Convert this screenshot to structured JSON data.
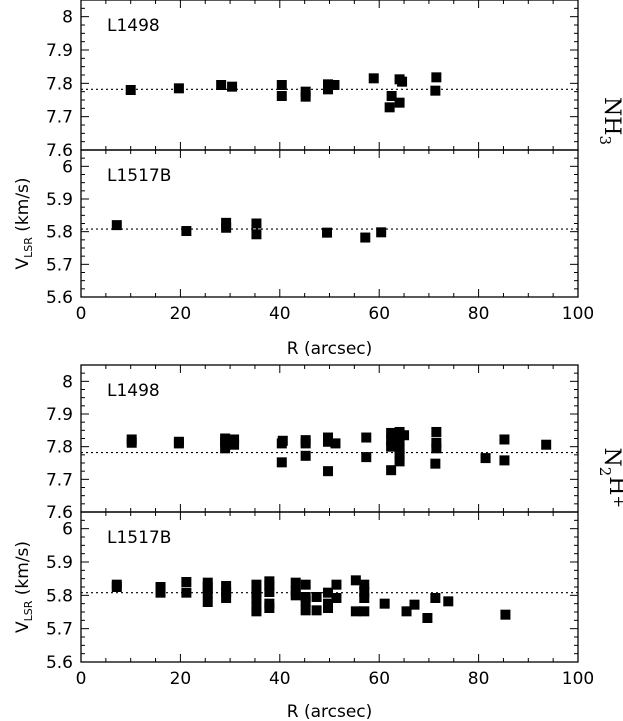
{
  "chart_data": [
    {
      "type": "scatter",
      "molecule": "NH3",
      "xlabel": "R (arcsec)",
      "xlim": [
        0,
        100
      ],
      "xticks": [
        0,
        20,
        40,
        60,
        80,
        100
      ],
      "panels": [
        {
          "label": "L1498",
          "ylim": [
            7.6,
            8.05
          ],
          "yticks": [
            7.6,
            7.7,
            7.8,
            7.9,
            8
          ],
          "ylabel": "",
          "reference": 7.782,
          "points": [
            [
              10,
              7.78
            ],
            [
              19.7,
              7.785
            ],
            [
              28.2,
              7.795
            ],
            [
              30.4,
              7.79
            ],
            [
              40.4,
              7.795
            ],
            [
              40.4,
              7.762
            ],
            [
              45.2,
              7.775
            ],
            [
              45.2,
              7.76
            ],
            [
              49.7,
              7.797
            ],
            [
              49.7,
              7.782
            ],
            [
              51,
              7.795
            ],
            [
              58.9,
              7.815
            ],
            [
              62.1,
              7.728
            ],
            [
              62.5,
              7.762
            ],
            [
              64.1,
              7.812
            ],
            [
              64.1,
              7.742
            ],
            [
              64.6,
              7.805
            ],
            [
              71.5,
              7.818
            ],
            [
              71.3,
              7.778
            ]
          ]
        },
        {
          "label": "L1517B",
          "ylim": [
            5.6,
            6.05
          ],
          "yticks": [
            5.6,
            5.7,
            5.8,
            5.9,
            6
          ],
          "ylabel": "V_LSR (km/s)",
          "reference": 5.808,
          "points": [
            [
              7.2,
              5.82
            ],
            [
              21.2,
              5.802
            ],
            [
              29.2,
              5.827
            ],
            [
              29.2,
              5.812
            ],
            [
              35.3,
              5.825
            ],
            [
              35.3,
              5.792
            ],
            [
              49.5,
              5.797
            ],
            [
              57.2,
              5.782
            ],
            [
              60.4,
              5.798
            ]
          ]
        }
      ]
    },
    {
      "type": "scatter",
      "molecule": "N2H+",
      "xlabel": "R (arcsec)",
      "xlim": [
        0,
        100
      ],
      "xticks": [
        0,
        20,
        40,
        60,
        80,
        100
      ],
      "panels": [
        {
          "label": "L1498",
          "ylim": [
            7.6,
            8.05
          ],
          "yticks": [
            7.6,
            7.7,
            7.8,
            7.9,
            8
          ],
          "ylabel": "",
          "reference": 7.782,
          "points": [
            [
              10.2,
              7.822
            ],
            [
              10.2,
              7.812
            ],
            [
              19.7,
              7.815
            ],
            [
              19.7,
              7.81
            ],
            [
              29,
              7.825
            ],
            [
              29,
              7.815
            ],
            [
              29,
              7.795
            ],
            [
              30.8,
              7.822
            ],
            [
              30.8,
              7.806
            ],
            [
              40.6,
              7.818
            ],
            [
              40.4,
              7.81
            ],
            [
              40.4,
              7.752
            ],
            [
              45.2,
              7.82
            ],
            [
              45.2,
              7.81
            ],
            [
              45.2,
              7.772
            ],
            [
              49.7,
              7.828
            ],
            [
              49.7,
              7.815
            ],
            [
              49.7,
              7.725
            ],
            [
              51.2,
              7.81
            ],
            [
              57.4,
              7.828
            ],
            [
              57.4,
              7.768
            ],
            [
              62.4,
              7.842
            ],
            [
              62.4,
              7.82
            ],
            [
              62.4,
              7.8
            ],
            [
              62.4,
              7.728
            ],
            [
              64.1,
              7.845
            ],
            [
              64.1,
              7.835
            ],
            [
              64.1,
              7.818
            ],
            [
              64.1,
              7.792
            ],
            [
              64.1,
              7.775
            ],
            [
              64.1,
              7.755
            ],
            [
              65,
              7.835
            ],
            [
              71.5,
              7.845
            ],
            [
              71.5,
              7.812
            ],
            [
              71.5,
              7.795
            ],
            [
              71.3,
              7.748
            ],
            [
              81.4,
              7.765
            ],
            [
              85.2,
              7.822
            ],
            [
              85.2,
              7.758
            ],
            [
              93.6,
              7.806
            ]
          ]
        },
        {
          "label": "L1517B",
          "ylim": [
            5.6,
            6.05
          ],
          "yticks": [
            5.6,
            5.7,
            5.8,
            5.9,
            6
          ],
          "ylabel": "V_LSR (km/s)",
          "reference": 5.808,
          "points": [
            [
              7.2,
              5.832
            ],
            [
              7.2,
              5.825
            ],
            [
              16,
              5.825
            ],
            [
              16,
              5.808
            ],
            [
              21.2,
              5.84
            ],
            [
              21.2,
              5.808
            ],
            [
              25.5,
              5.838
            ],
            [
              25.5,
              5.825
            ],
            [
              25.5,
              5.808
            ],
            [
              25.5,
              5.78
            ],
            [
              29.2,
              5.828
            ],
            [
              29.2,
              5.81
            ],
            [
              29.2,
              5.792
            ],
            [
              35.3,
              5.832
            ],
            [
              35.3,
              5.808
            ],
            [
              35.3,
              5.792
            ],
            [
              35.3,
              5.765
            ],
            [
              35.3,
              5.752
            ],
            [
              37.9,
              5.842
            ],
            [
              37.9,
              5.83
            ],
            [
              37.9,
              5.81
            ],
            [
              37.9,
              5.775
            ],
            [
              37.9,
              5.762
            ],
            [
              43.2,
              5.838
            ],
            [
              43.2,
              5.812
            ],
            [
              43.2,
              5.8
            ],
            [
              45.2,
              5.832
            ],
            [
              45.2,
              5.795
            ],
            [
              45.2,
              5.782
            ],
            [
              45.2,
              5.755
            ],
            [
              47.4,
              5.795
            ],
            [
              47.4,
              5.755
            ],
            [
              49.7,
              5.808
            ],
            [
              49.7,
              5.775
            ],
            [
              49.7,
              5.762
            ],
            [
              51.4,
              5.832
            ],
            [
              51.4,
              5.792
            ],
            [
              55.3,
              5.845
            ],
            [
              55.3,
              5.752
            ],
            [
              57,
              5.832
            ],
            [
              57,
              5.81
            ],
            [
              57,
              5.792
            ],
            [
              57,
              5.752
            ],
            [
              61.1,
              5.775
            ],
            [
              65.5,
              5.752
            ],
            [
              67.1,
              5.772
            ],
            [
              69.7,
              5.732
            ],
            [
              71.3,
              5.792
            ],
            [
              73.9,
              5.782
            ],
            [
              85.4,
              5.742
            ]
          ]
        }
      ]
    }
  ]
}
